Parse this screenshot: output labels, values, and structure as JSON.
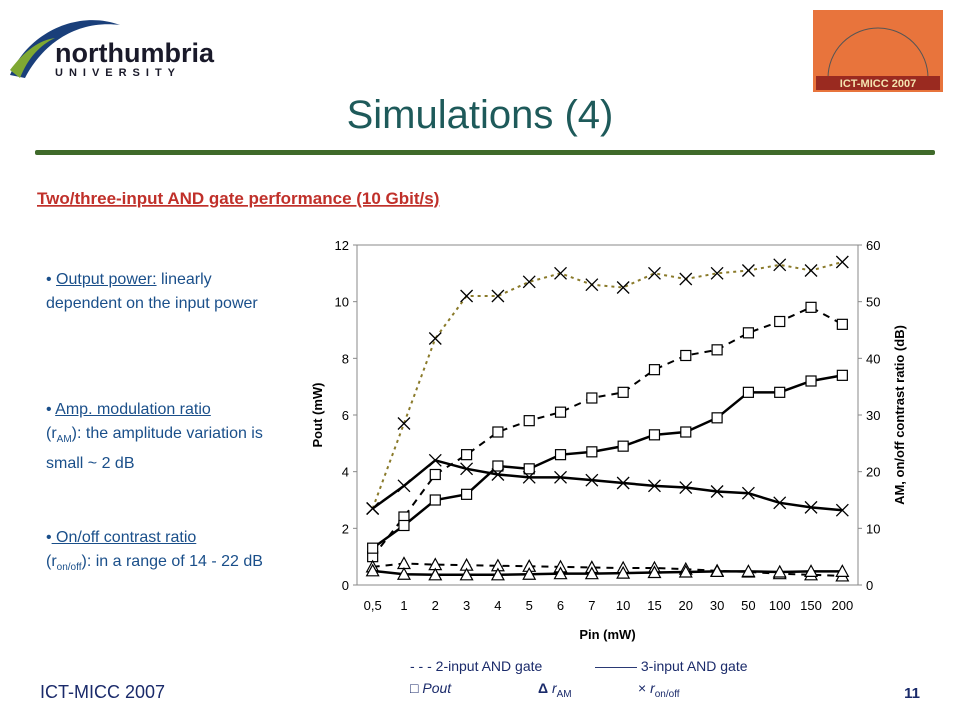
{
  "header": {
    "logo_name": "northumbria",
    "logo_sub": "UNIVERSITY",
    "badge": "ICT-MICC 2007"
  },
  "title": "Simulations (4)",
  "subtitle": "Two/three-input AND gate performance (10 Gbit/s)",
  "bullets": [
    {
      "head": "Output power:",
      "text": " linearly dependent on the input power"
    },
    {
      "head": "Amp. modulation ratio",
      "pre": "(r",
      "sub": "AM",
      "text": "): the amplitude variation is small ~ 2 dB"
    },
    {
      "head": " On/off contrast ratio",
      "pre": "(r",
      "sub": "on/off",
      "text": "): in a range of 14 - 22 dB"
    }
  ],
  "chart_data": {
    "type": "line",
    "x_label": "Pin (mW)",
    "y_label": "Pout (mW)",
    "y2_label": "AM, on/off contrast ratio (dB)",
    "categories": [
      "0,5",
      "1",
      "2",
      "3",
      "4",
      "5",
      "6",
      "7",
      "10",
      "15",
      "20",
      "30",
      "50",
      "100",
      "150",
      "200"
    ],
    "ylim": [
      0,
      12
    ],
    "yticks": [
      0,
      2,
      4,
      6,
      8,
      10,
      12
    ],
    "y2lim": [
      0,
      60
    ],
    "y2ticks": [
      0,
      10,
      20,
      30,
      40,
      50,
      60
    ],
    "series": [
      {
        "color": "#000000",
        "dash": "dashed",
        "marker": "square",
        "values": [
          1.0,
          2.4,
          3.9,
          4.6,
          5.4,
          5.8,
          6.1,
          6.6,
          6.8,
          7.6,
          8.1,
          8.3,
          8.9,
          9.3,
          9.8,
          9.2
        ]
      },
      {
        "color": "#000000",
        "dash": "solid",
        "marker": "square",
        "values": [
          1.3,
          2.1,
          3.0,
          3.2,
          4.2,
          4.1,
          4.6,
          4.7,
          4.9,
          5.3,
          5.4,
          5.9,
          6.8,
          6.8,
          7.2,
          7.4
        ]
      },
      {
        "color": "#000000",
        "dash": "dashed",
        "marker": "triangle",
        "axis": "y2",
        "values": [
          3.2,
          3.8,
          3.6,
          3.5,
          3.4,
          3.3,
          3.2,
          3.1,
          3.0,
          3.0,
          2.8,
          2.5,
          2.3,
          2.0,
          1.8,
          1.6
        ]
      },
      {
        "color": "#000000",
        "dash": "solid",
        "marker": "triangle",
        "axis": "y2",
        "values": [
          2.5,
          1.9,
          1.8,
          1.8,
          1.8,
          1.9,
          2.0,
          2.0,
          2.1,
          2.2,
          2.3,
          2.4,
          2.4,
          2.3,
          2.4,
          2.4
        ]
      },
      {
        "color": "#8a7a2a",
        "dash": "dotted",
        "marker": "cross",
        "axis": "y2",
        "values": [
          13.5,
          28.5,
          43.5,
          51,
          51,
          53.5,
          55,
          53,
          52.5,
          55,
          54,
          55,
          55.5,
          56.5,
          55.5,
          57
        ]
      },
      {
        "color": "#000000",
        "dash": "solid",
        "marker": "cross",
        "axis": "y2",
        "values": [
          13.5,
          17.5,
          22,
          20.5,
          19.5,
          19,
          19,
          18.5,
          18,
          17.5,
          17.2,
          16.5,
          16.2,
          14.5,
          13.7,
          13.2
        ]
      }
    ],
    "legend": {
      "gate2": "2-input AND gate",
      "gate3": "3-input AND gate",
      "pout": "Pout",
      "ram": "r",
      "ram_sub": "AM",
      "ronoff": "r",
      "ronoff_sub": "on/off"
    }
  },
  "footer": {
    "left": "ICT-MICC 2007",
    "page": "11"
  }
}
